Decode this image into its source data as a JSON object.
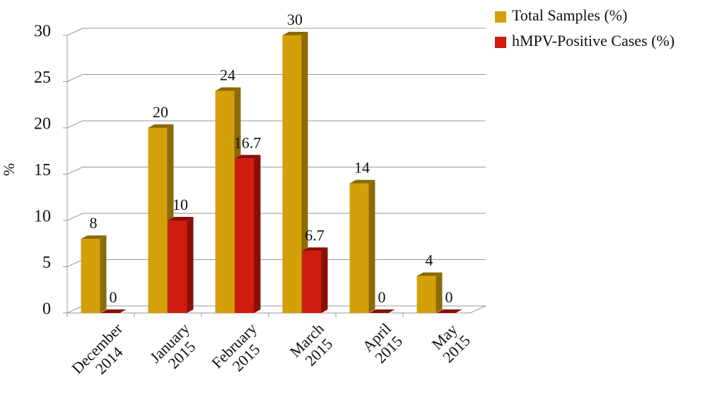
{
  "chart_data": {
    "type": "bar3d",
    "y_label": "%",
    "categories": [
      "December 2014",
      "January 2015",
      "February 2015",
      "March 2015",
      "April 2015",
      "May 2015"
    ],
    "series": [
      {
        "name": "Total Samples (%)",
        "color": "#d4a00a",
        "side": "#8c6a06",
        "values": [
          8,
          20,
          24,
          30,
          14,
          4
        ]
      },
      {
        "name": "hMPV-Positive Cases (%)",
        "color": "#cf1b10",
        "side": "#8a0f08",
        "values": [
          0,
          10,
          16.7,
          6.7,
          0,
          0
        ]
      }
    ],
    "ylim": [
      0,
      30
    ],
    "yticks": [
      0,
      5,
      10,
      15,
      20,
      25,
      30
    ],
    "grid": true
  }
}
